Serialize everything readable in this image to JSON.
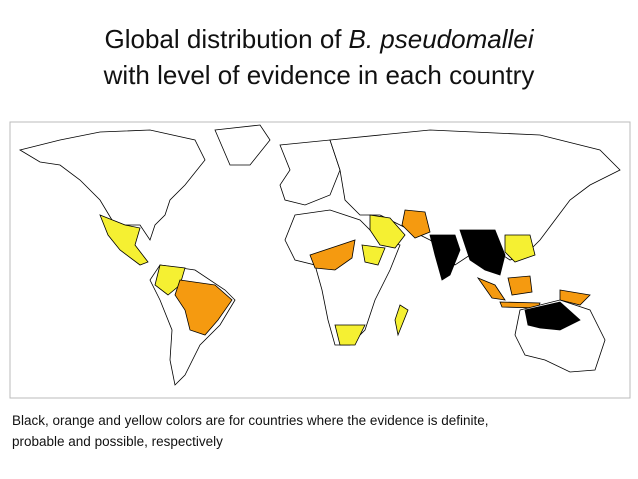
{
  "title": {
    "line1_prefix": "Global distribution of",
    "line1_italic": "B. pseudomallei",
    "line2": "with level of evidence in each country"
  },
  "caption": {
    "lines": [
      "Black, orange and yellow colors are for countries where the evidence is definite,",
      "probable and possible, respectively"
    ]
  }
}
